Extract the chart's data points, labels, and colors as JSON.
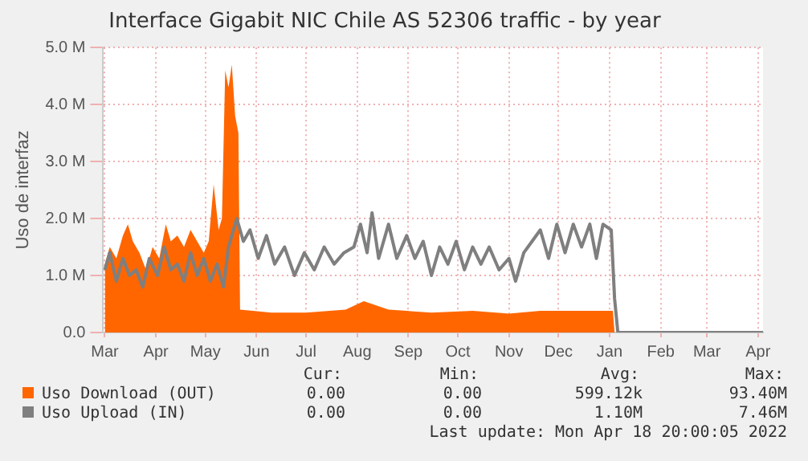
{
  "chart_data": {
    "type": "area",
    "title": "Interface Gigabit NIC Chile AS 52306 traffic - by year",
    "ylabel": "Uso de interfaz",
    "xlim": [
      "2021-02-28",
      "2022-04-04"
    ],
    "xticks": [
      {
        "value": "2021-03-01",
        "label": "Mar"
      },
      {
        "value": "2021-04-01",
        "label": "Apr"
      },
      {
        "value": "2021-05-01",
        "label": "May"
      },
      {
        "value": "2021-06-01",
        "label": "Jun"
      },
      {
        "value": "2021-07-01",
        "label": "Jul"
      },
      {
        "value": "2021-08-01",
        "label": "Aug"
      },
      {
        "value": "2021-09-01",
        "label": "Sep"
      },
      {
        "value": "2021-10-01",
        "label": "Oct"
      },
      {
        "value": "2021-11-01",
        "label": "Nov"
      },
      {
        "value": "2021-12-01",
        "label": "Dec"
      },
      {
        "value": "2022-01-01",
        "label": "Jan"
      },
      {
        "value": "2022-02-01",
        "label": "Feb"
      },
      {
        "value": "2022-03-01",
        "label": "Mar"
      },
      {
        "value": "2022-04-01",
        "label": "Apr"
      }
    ],
    "ylim": [
      0,
      5
    ],
    "yticks": [
      {
        "value": 0,
        "label": "0.0"
      },
      {
        "value": 1,
        "label": "1.0 M"
      },
      {
        "value": 2,
        "label": "2.0 M"
      },
      {
        "value": 3,
        "label": "3.0 M"
      },
      {
        "value": 4,
        "label": "4.0 M"
      },
      {
        "value": 5,
        "label": "5.0 M"
      }
    ],
    "grid": true,
    "legend": "bottom",
    "series": [
      {
        "name": "Uso Download (OUT)",
        "color": "#ff6600",
        "x": [
          "2021-03-01",
          "2021-03-04",
          "2021-03-08",
          "2021-03-12",
          "2021-03-15",
          "2021-03-18",
          "2021-03-22",
          "2021-03-26",
          "2021-03-30",
          "2021-04-03",
          "2021-04-07",
          "2021-04-10",
          "2021-04-14",
          "2021-04-18",
          "2021-04-22",
          "2021-04-26",
          "2021-04-30",
          "2021-05-03",
          "2021-05-06",
          "2021-05-09",
          "2021-05-11",
          "2021-05-13",
          "2021-05-15",
          "2021-05-17",
          "2021-05-19",
          "2021-05-21",
          "2021-05-22",
          "2021-06-10",
          "2021-07-01",
          "2021-07-25",
          "2021-08-05",
          "2021-08-20",
          "2021-09-15",
          "2021-10-10",
          "2021-11-01",
          "2021-11-20",
          "2021-12-15",
          "2022-01-03",
          "2022-01-04",
          "2022-04-04"
        ],
        "values": [
          1.2,
          1.5,
          1.3,
          1.7,
          1.9,
          1.6,
          1.4,
          1.1,
          1.5,
          1.3,
          1.9,
          1.6,
          1.7,
          1.5,
          1.8,
          1.6,
          1.4,
          1.6,
          2.6,
          1.8,
          2.0,
          4.6,
          4.3,
          4.7,
          3.8,
          3.5,
          0.4,
          0.35,
          0.35,
          0.4,
          0.55,
          0.4,
          0.35,
          0.38,
          0.33,
          0.38,
          0.38,
          0.38,
          0,
          0
        ]
      },
      {
        "name": "Uso Upload (IN)",
        "type": "line",
        "color": "#7f7f7f",
        "x": [
          "2021-03-01",
          "2021-03-04",
          "2021-03-08",
          "2021-03-12",
          "2021-03-16",
          "2021-03-20",
          "2021-03-24",
          "2021-03-28",
          "2021-04-02",
          "2021-04-06",
          "2021-04-10",
          "2021-04-14",
          "2021-04-18",
          "2021-04-22",
          "2021-04-26",
          "2021-04-30",
          "2021-05-04",
          "2021-05-08",
          "2021-05-12",
          "2021-05-15",
          "2021-05-20",
          "2021-05-24",
          "2021-05-28",
          "2021-06-02",
          "2021-06-07",
          "2021-06-12",
          "2021-06-18",
          "2021-06-24",
          "2021-06-30",
          "2021-07-06",
          "2021-07-12",
          "2021-07-18",
          "2021-07-24",
          "2021-07-30",
          "2021-08-03",
          "2021-08-07",
          "2021-08-10",
          "2021-08-14",
          "2021-08-20",
          "2021-08-25",
          "2021-08-31",
          "2021-09-05",
          "2021-09-10",
          "2021-09-15",
          "2021-09-20",
          "2021-09-25",
          "2021-09-30",
          "2021-10-05",
          "2021-10-10",
          "2021-10-15",
          "2021-10-20",
          "2021-10-26",
          "2021-11-01",
          "2021-11-05",
          "2021-11-10",
          "2021-11-15",
          "2021-11-20",
          "2021-11-25",
          "2021-11-30",
          "2021-12-05",
          "2021-12-10",
          "2021-12-15",
          "2021-12-20",
          "2021-12-24",
          "2021-12-28",
          "2022-01-02",
          "2022-01-04",
          "2022-01-06",
          "2022-04-04"
        ],
        "values": [
          1.1,
          1.4,
          0.9,
          1.3,
          1.0,
          1.1,
          0.8,
          1.3,
          1.0,
          1.5,
          1.1,
          1.2,
          0.9,
          1.4,
          1.0,
          1.3,
          0.9,
          1.2,
          0.8,
          1.5,
          2.0,
          1.6,
          1.8,
          1.3,
          1.7,
          1.2,
          1.5,
          1.0,
          1.4,
          1.1,
          1.5,
          1.2,
          1.4,
          1.5,
          1.9,
          1.4,
          2.1,
          1.3,
          1.9,
          1.3,
          1.7,
          1.3,
          1.6,
          1.0,
          1.5,
          1.2,
          1.6,
          1.1,
          1.5,
          1.2,
          1.5,
          1.1,
          1.3,
          0.9,
          1.4,
          1.6,
          1.8,
          1.3,
          1.9,
          1.4,
          1.9,
          1.5,
          1.9,
          1.3,
          1.9,
          1.8,
          0.6,
          0,
          0
        ]
      }
    ],
    "annotations": [
      "Cur:",
      "Min:",
      "Avg:",
      "Max:",
      "0.00",
      "0.00",
      "599.12k",
      "93.40M",
      "0.00",
      "0.00",
      "1.10M",
      "7.46M",
      "Last update: Mon Apr 18 20:00:05 2022"
    ]
  }
}
